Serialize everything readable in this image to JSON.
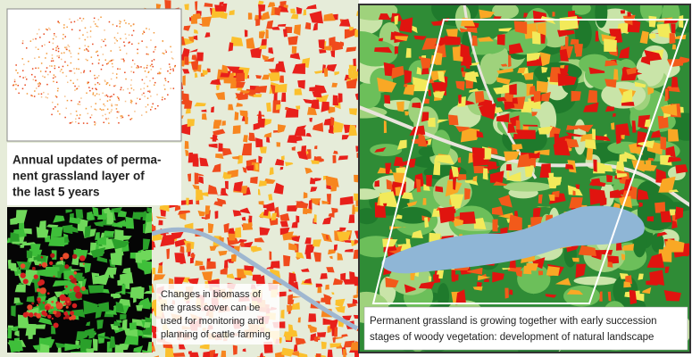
{
  "insets": {
    "grassland_layer": {
      "caption_lines": [
        "Annual updates of perma-",
        "nent grassland layer of",
        "the last 5 years"
      ]
    },
    "biomass": {
      "caption_lines": [
        "Changes in biomass of",
        "the grass cover can be",
        "used for monitoring and",
        "planning of cattle farming"
      ]
    },
    "succession": {
      "caption_lines": [
        "Permanent grassland is growing together with early succession",
        "stages of woody vegetation: development of natural landscape"
      ]
    }
  }
}
